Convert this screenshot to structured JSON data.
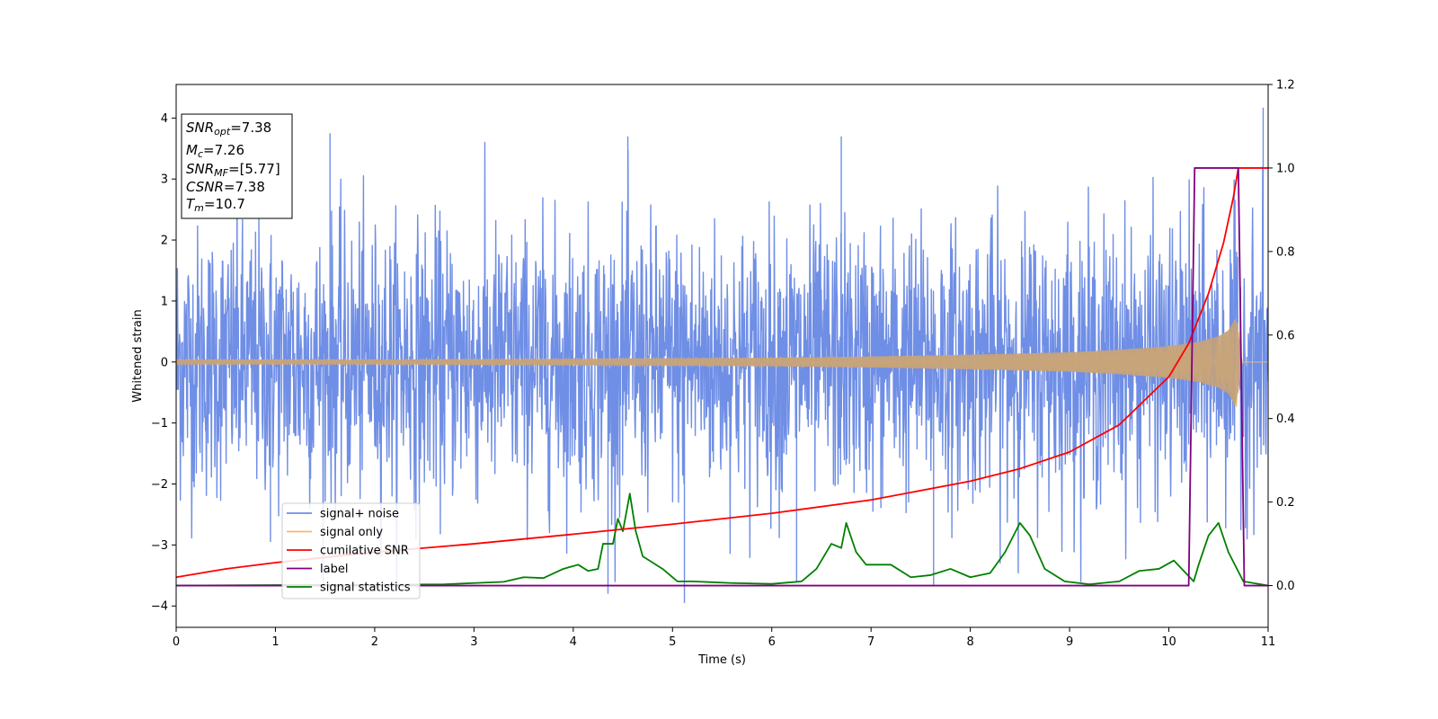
{
  "chart_data": {
    "type": "line",
    "xlabel": "Time (s)",
    "ylabel": "Whitened strain",
    "xlim": [
      0,
      11
    ],
    "ylim_left": [
      -4.35,
      4.55
    ],
    "ylim_right": [
      -0.1,
      1.2
    ],
    "x_ticks": [
      "0",
      "1",
      "2",
      "3",
      "4",
      "5",
      "6",
      "7",
      "8",
      "9",
      "10",
      "11"
    ],
    "y_ticks_left": [
      "−4",
      "−3",
      "−2",
      "−1",
      "0",
      "1",
      "2",
      "3",
      "4"
    ],
    "y_ticks_right": [
      "0.0",
      "0.2",
      "0.4",
      "0.6",
      "0.8",
      "1.0",
      "1.2"
    ],
    "grid": false,
    "legend_position": "lower-left",
    "annotation": {
      "lines": [
        {
          "main": "SNR",
          "sub": "opt",
          "rest": "=7.38"
        },
        {
          "main": "M",
          "sub": "c",
          "rest": "=7.26"
        },
        {
          "main": "SNR",
          "sub": "MF",
          "rest": "=[5.77]"
        },
        {
          "main": "CSNR",
          "sub": "",
          "rest": "=7.38"
        },
        {
          "main": "T",
          "sub": "m",
          "rest": "=10.7"
        }
      ]
    },
    "series": [
      {
        "name": "signal+ noise",
        "axis": "left",
        "color": "#6f8ee5",
        "description_values": {
          "std": 1.0,
          "range": [
            -3.95,
            4.17
          ]
        },
        "notable_peaks": [
          [
            0.95,
            -2.95
          ],
          [
            1.55,
            3.75
          ],
          [
            4.55,
            3.7
          ],
          [
            4.35,
            -3.8
          ],
          [
            5.12,
            -3.95
          ],
          [
            6.25,
            -3.6
          ],
          [
            6.7,
            3.7
          ],
          [
            7.63,
            -3.65
          ],
          [
            10.95,
            4.17
          ]
        ]
      },
      {
        "name": "signal only",
        "axis": "left",
        "color": "#f5b96b",
        "envelope": [
          [
            0,
            0.04
          ],
          [
            2,
            0.04
          ],
          [
            4,
            0.05
          ],
          [
            6,
            0.07
          ],
          [
            7,
            0.09
          ],
          [
            8,
            0.12
          ],
          [
            9,
            0.16
          ],
          [
            9.5,
            0.2
          ],
          [
            10,
            0.26
          ],
          [
            10.3,
            0.33
          ],
          [
            10.5,
            0.42
          ],
          [
            10.6,
            0.52
          ],
          [
            10.68,
            0.75
          ],
          [
            10.7,
            0.6
          ],
          [
            10.72,
            0.0
          ],
          [
            11,
            0.0
          ]
        ]
      },
      {
        "name": "cumilative SNR",
        "axis": "right",
        "color": "#ff0000",
        "points": [
          [
            0,
            0.02
          ],
          [
            0.5,
            0.04
          ],
          [
            1,
            0.055
          ],
          [
            2,
            0.08
          ],
          [
            3,
            0.1
          ],
          [
            4,
            0.123
          ],
          [
            5,
            0.147
          ],
          [
            6,
            0.173
          ],
          [
            7,
            0.205
          ],
          [
            8,
            0.25
          ],
          [
            8.5,
            0.28
          ],
          [
            9,
            0.32
          ],
          [
            9.5,
            0.385
          ],
          [
            10,
            0.5
          ],
          [
            10.2,
            0.58
          ],
          [
            10.4,
            0.7
          ],
          [
            10.55,
            0.82
          ],
          [
            10.65,
            0.93
          ],
          [
            10.7,
            1.0
          ],
          [
            11,
            1.0
          ]
        ]
      },
      {
        "name": "label",
        "axis": "right",
        "color": "#800080",
        "points": [
          [
            0,
            0.0
          ],
          [
            10.2,
            0.0
          ],
          [
            10.26,
            1.0
          ],
          [
            10.7,
            1.0
          ],
          [
            10.76,
            0.0
          ],
          [
            11,
            0.0
          ]
        ]
      },
      {
        "name": "signal statistics",
        "axis": "right",
        "color": "#008000",
        "points": [
          [
            0,
            0.0
          ],
          [
            1,
            0.001
          ],
          [
            2,
            0.002
          ],
          [
            2.7,
            0.003
          ],
          [
            3,
            0.006
          ],
          [
            3.3,
            0.009
          ],
          [
            3.5,
            0.02
          ],
          [
            3.7,
            0.018
          ],
          [
            3.9,
            0.04
          ],
          [
            4.05,
            0.05
          ],
          [
            4.15,
            0.035
          ],
          [
            4.25,
            0.04
          ],
          [
            4.3,
            0.1
          ],
          [
            4.4,
            0.1
          ],
          [
            4.45,
            0.16
          ],
          [
            4.5,
            0.13
          ],
          [
            4.57,
            0.22
          ],
          [
            4.63,
            0.13
          ],
          [
            4.7,
            0.07
          ],
          [
            4.9,
            0.04
          ],
          [
            5.05,
            0.01
          ],
          [
            5.2,
            0.01
          ],
          [
            5.4,
            0.008
          ],
          [
            5.6,
            0.006
          ],
          [
            6.0,
            0.004
          ],
          [
            6.3,
            0.01
          ],
          [
            6.45,
            0.04
          ],
          [
            6.6,
            0.1
          ],
          [
            6.7,
            0.09
          ],
          [
            6.75,
            0.15
          ],
          [
            6.85,
            0.08
          ],
          [
            6.95,
            0.05
          ],
          [
            7.05,
            0.05
          ],
          [
            7.2,
            0.05
          ],
          [
            7.4,
            0.02
          ],
          [
            7.6,
            0.025
          ],
          [
            7.8,
            0.04
          ],
          [
            8.0,
            0.02
          ],
          [
            8.2,
            0.03
          ],
          [
            8.35,
            0.08
          ],
          [
            8.5,
            0.15
          ],
          [
            8.6,
            0.12
          ],
          [
            8.75,
            0.04
          ],
          [
            8.95,
            0.01
          ],
          [
            9.2,
            0.003
          ],
          [
            9.5,
            0.01
          ],
          [
            9.7,
            0.035
          ],
          [
            9.9,
            0.04
          ],
          [
            10.05,
            0.06
          ],
          [
            10.25,
            0.01
          ],
          [
            10.3,
            0.05
          ],
          [
            10.4,
            0.12
          ],
          [
            10.5,
            0.15
          ],
          [
            10.6,
            0.08
          ],
          [
            10.75,
            0.01
          ],
          [
            11,
            0.0
          ]
        ]
      }
    ]
  }
}
